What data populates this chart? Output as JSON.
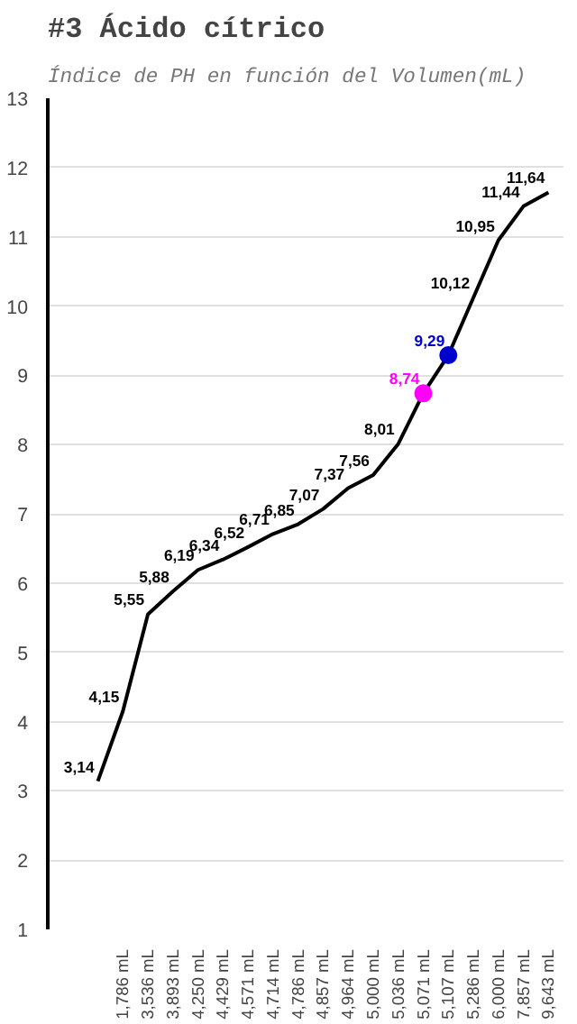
{
  "chart_data": {
    "type": "line",
    "title": "#3 Ácido cítrico",
    "subtitle": "Índice de PH en función del Volumen(mL)",
    "categories": [
      null,
      "1,786 mL",
      "3,536 mL",
      "3,893 mL",
      "4,250 mL",
      "4,429 mL",
      "4,571 mL",
      "4,714 mL",
      "4,786 mL",
      "4,857 mL",
      "4,964 mL",
      "5,000 mL",
      "5,036 mL",
      "5,071 mL",
      "5,107 mL",
      "5,286 mL",
      "6,000 mL",
      "7,857 mL",
      "9,643 mL"
    ],
    "ylim": [
      1,
      13
    ],
    "yticks": [
      1,
      2,
      3,
      4,
      5,
      6,
      7,
      8,
      9,
      10,
      11,
      12,
      13
    ],
    "grid": "y",
    "line_style": "solid",
    "series": [
      {
        "color": "#000000",
        "values": [
          3.14,
          4.15,
          5.55,
          5.88,
          6.19,
          6.34,
          6.52,
          6.71,
          6.85,
          7.07,
          7.37,
          7.56,
          8.01,
          8.74,
          9.29,
          10.12,
          10.95,
          11.44,
          11.64
        ],
        "value_labels": [
          "3,14",
          "4,15",
          "5,55",
          "5,88",
          "6,19",
          "6,34",
          "6,52",
          "6,71",
          "6,85",
          "7,07",
          "7,37",
          "7,56",
          "8,01",
          null,
          null,
          "10,12",
          "10,95",
          "11,44",
          "11,64"
        ]
      },
      {
        "type": "scatter",
        "color": "#ff00ff",
        "marker": "circle",
        "values": [
          null,
          null,
          null,
          null,
          null,
          null,
          null,
          null,
          null,
          null,
          null,
          null,
          null,
          8.74,
          null,
          null,
          null,
          null,
          null
        ],
        "value_labels": [
          null,
          null,
          null,
          null,
          null,
          null,
          null,
          null,
          null,
          null,
          null,
          null,
          null,
          "8,74",
          null,
          null,
          null,
          null,
          null
        ]
      },
      {
        "type": "scatter",
        "color": "#0000cc",
        "marker": "circle",
        "values": [
          null,
          null,
          null,
          null,
          null,
          null,
          null,
          null,
          null,
          null,
          null,
          null,
          null,
          null,
          9.29,
          null,
          null,
          null,
          null
        ],
        "value_labels": [
          null,
          null,
          null,
          null,
          null,
          null,
          null,
          null,
          null,
          null,
          null,
          null,
          null,
          null,
          "9,29",
          null,
          null,
          null,
          null
        ]
      }
    ]
  }
}
